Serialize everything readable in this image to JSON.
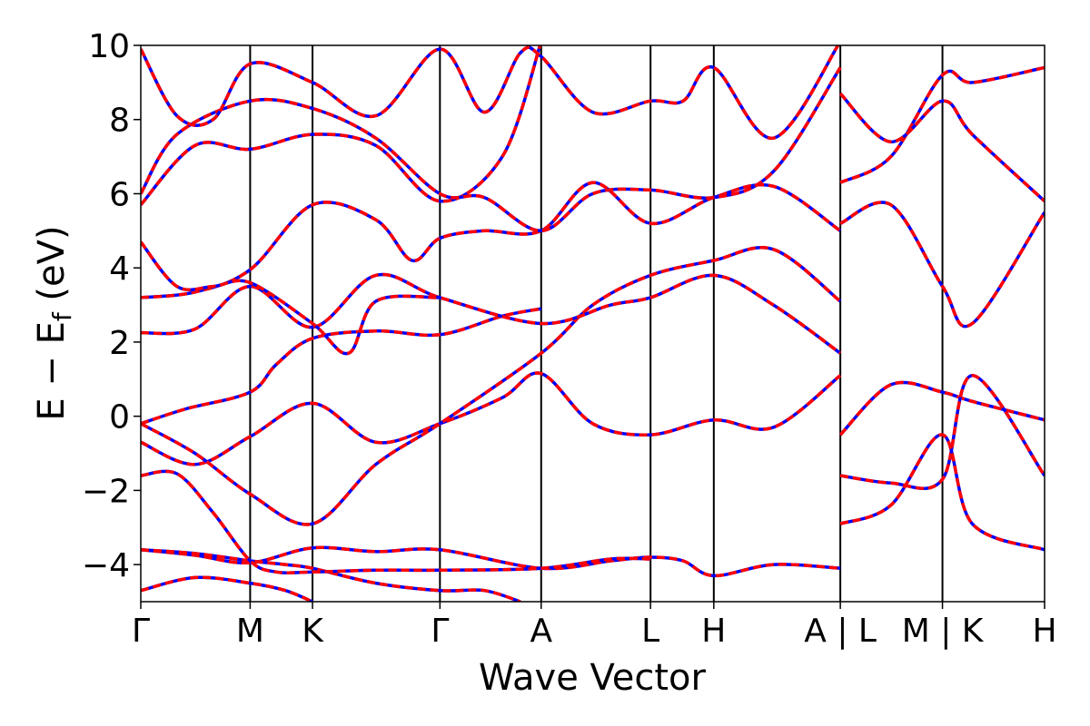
{
  "chart_data": {
    "type": "line",
    "title": "",
    "xlabel": "Wave Vector",
    "ylabel_parts": {
      "main": "E − E",
      "subscript": "f",
      "unit": " (eV)"
    },
    "ylim": [
      -5,
      10
    ],
    "yticks": [
      {
        "value": 10,
        "label": "10"
      },
      {
        "value": 8,
        "label": "8"
      },
      {
        "value": 6,
        "label": "6"
      },
      {
        "value": 4,
        "label": "4"
      },
      {
        "value": 2,
        "label": "2"
      },
      {
        "value": 0,
        "label": "0"
      },
      {
        "value": -2,
        "label": "−2"
      },
      {
        "value": -4,
        "label": "−4"
      }
    ],
    "xlim": [
      0,
      1
    ],
    "high_symmetry_points": [
      {
        "pos": 0.0,
        "label": "Γ"
      },
      {
        "pos": 0.121,
        "label": "M"
      },
      {
        "pos": 0.19,
        "label": "K"
      },
      {
        "pos": 0.331,
        "label": "Γ"
      },
      {
        "pos": 0.443,
        "label": "A"
      },
      {
        "pos": 0.564,
        "label": "L"
      },
      {
        "pos": 0.634,
        "label": "H"
      },
      {
        "pos": 0.774,
        "label": "A | L"
      },
      {
        "pos": 0.887,
        "label": "M | K"
      },
      {
        "pos": 1.0,
        "label": "H"
      }
    ],
    "overlay_colors": {
      "base": "#0000ff",
      "dashed": "#ff0000"
    },
    "bands": [
      [
        [
          0.0,
          -4.7
        ],
        [
          0.06,
          -4.35
        ],
        [
          0.121,
          -4.5
        ],
        [
          0.16,
          -4.7
        ],
        [
          0.19,
          -5.0
        ]
      ],
      [
        [
          0.0,
          -3.6
        ],
        [
          0.06,
          -3.75
        ],
        [
          0.121,
          -3.95
        ],
        [
          0.19,
          -3.55
        ],
        [
          0.26,
          -3.65
        ],
        [
          0.331,
          -3.6
        ],
        [
          0.443,
          -4.1
        ],
        [
          0.52,
          -3.9
        ],
        [
          0.564,
          -3.8
        ],
        [
          0.6,
          -3.9
        ],
        [
          0.634,
          -4.3
        ],
        [
          0.7,
          -4.0
        ],
        [
          0.774,
          -4.1
        ]
      ],
      [
        [
          0.0,
          -3.6
        ],
        [
          0.06,
          -3.7
        ],
        [
          0.121,
          -3.9
        ],
        [
          0.16,
          -4.0
        ],
        [
          0.19,
          -4.1
        ],
        [
          0.26,
          -4.5
        ],
        [
          0.331,
          -4.7
        ],
        [
          0.38,
          -4.7
        ],
        [
          0.42,
          -5.0
        ]
      ],
      [
        [
          0.0,
          -1.6
        ],
        [
          0.04,
          -1.55
        ],
        [
          0.08,
          -2.6
        ],
        [
          0.121,
          -3.9
        ],
        [
          0.15,
          -4.2
        ],
        [
          0.19,
          -4.2
        ],
        [
          0.26,
          -4.15
        ],
        [
          0.331,
          -4.15
        ],
        [
          0.443,
          -4.1
        ],
        [
          0.52,
          -3.85
        ],
        [
          0.564,
          -3.85
        ]
      ],
      [
        [
          0.0,
          -0.7
        ],
        [
          0.06,
          -1.3
        ],
        [
          0.121,
          -0.55
        ],
        [
          0.19,
          0.35
        ],
        [
          0.26,
          -0.7
        ],
        [
          0.331,
          -0.2
        ],
        [
          0.4,
          0.5
        ],
        [
          0.443,
          1.15
        ],
        [
          0.5,
          -0.2
        ],
        [
          0.564,
          -0.5
        ],
        [
          0.634,
          -0.1
        ],
        [
          0.7,
          -0.3
        ],
        [
          0.774,
          1.1
        ]
      ],
      [
        [
          0.0,
          -0.2
        ],
        [
          0.05,
          0.2
        ],
        [
          0.121,
          0.65
        ],
        [
          0.15,
          1.4
        ],
        [
          0.19,
          2.1
        ],
        [
          0.26,
          2.3
        ],
        [
          0.331,
          2.2
        ],
        [
          0.4,
          2.7
        ],
        [
          0.443,
          2.9
        ]
      ],
      [
        [
          0.0,
          -0.2
        ],
        [
          0.06,
          -1.0
        ],
        [
          0.121,
          -2.1
        ],
        [
          0.19,
          -2.9
        ],
        [
          0.26,
          -1.3
        ],
        [
          0.331,
          -0.2
        ],
        [
          0.443,
          1.7
        ],
        [
          0.5,
          3.0
        ],
        [
          0.564,
          3.8
        ],
        [
          0.634,
          4.2
        ],
        [
          0.7,
          4.5
        ],
        [
          0.774,
          3.1
        ]
      ],
      [
        [
          0.0,
          2.25
        ],
        [
          0.06,
          2.35
        ],
        [
          0.121,
          3.5
        ],
        [
          0.19,
          2.4
        ],
        [
          0.26,
          3.8
        ],
        [
          0.331,
          3.2
        ],
        [
          0.443,
          2.5
        ],
        [
          0.52,
          3.0
        ],
        [
          0.564,
          3.2
        ],
        [
          0.634,
          3.8
        ],
        [
          0.7,
          3.0
        ],
        [
          0.774,
          1.7
        ]
      ],
      [
        [
          0.0,
          3.2
        ],
        [
          0.06,
          3.35
        ],
        [
          0.121,
          3.95
        ],
        [
          0.19,
          5.7
        ],
        [
          0.26,
          5.3
        ],
        [
          0.3,
          4.2
        ],
        [
          0.331,
          4.8
        ],
        [
          0.38,
          5.0
        ],
        [
          0.443,
          5.0
        ],
        [
          0.5,
          6.3
        ],
        [
          0.564,
          5.2
        ],
        [
          0.634,
          5.9
        ],
        [
          0.7,
          6.2
        ],
        [
          0.774,
          5.0
        ]
      ],
      [
        [
          0.0,
          4.7
        ],
        [
          0.04,
          3.5
        ],
        [
          0.08,
          3.5
        ],
        [
          0.121,
          3.6
        ],
        [
          0.19,
          2.5
        ],
        [
          0.23,
          1.7
        ],
        [
          0.26,
          3.1
        ],
        [
          0.331,
          3.2
        ]
      ],
      [
        [
          0.0,
          5.7
        ],
        [
          0.06,
          7.3
        ],
        [
          0.121,
          7.2
        ],
        [
          0.19,
          7.6
        ],
        [
          0.26,
          7.3
        ],
        [
          0.331,
          5.8
        ],
        [
          0.4,
          7.0
        ],
        [
          0.443,
          10.1
        ]
      ],
      [
        [
          0.0,
          6.0
        ],
        [
          0.04,
          7.6
        ],
        [
          0.121,
          8.5
        ],
        [
          0.19,
          8.3
        ],
        [
          0.26,
          7.5
        ],
        [
          0.331,
          6.0
        ],
        [
          0.38,
          5.9
        ],
        [
          0.443,
          5.0
        ],
        [
          0.5,
          6.0
        ],
        [
          0.564,
          6.1
        ],
        [
          0.634,
          5.9
        ],
        [
          0.7,
          6.6
        ],
        [
          0.774,
          9.4
        ]
      ],
      [
        [
          0.0,
          9.9
        ],
        [
          0.04,
          8.1
        ],
        [
          0.08,
          8.0
        ],
        [
          0.121,
          9.5
        ],
        [
          0.19,
          9.0
        ],
        [
          0.26,
          8.1
        ],
        [
          0.331,
          9.9
        ],
        [
          0.38,
          8.2
        ],
        [
          0.42,
          9.8
        ],
        [
          0.443,
          9.7
        ],
        [
          0.5,
          8.2
        ],
        [
          0.564,
          8.5
        ],
        [
          0.6,
          8.5
        ],
        [
          0.634,
          9.4
        ],
        [
          0.7,
          7.5
        ],
        [
          0.774,
          10.1
        ]
      ],
      [
        [
          0.774,
          -0.5
        ],
        [
          0.83,
          0.85
        ],
        [
          0.887,
          0.65
        ],
        [
          0.92,
          0.4
        ],
        [
          1.0,
          -0.1
        ]
      ],
      [
        [
          0.774,
          -1.6
        ],
        [
          0.83,
          -1.8
        ],
        [
          0.887,
          -1.7
        ],
        [
          0.92,
          1.1
        ],
        [
          1.0,
          -1.6
        ]
      ],
      [
        [
          0.774,
          -2.9
        ],
        [
          0.83,
          -2.4
        ],
        [
          0.887,
          -0.5
        ],
        [
          0.92,
          -2.9
        ],
        [
          1.0,
          -3.6
        ]
      ],
      [
        [
          0.774,
          5.2
        ],
        [
          0.83,
          5.7
        ],
        [
          0.887,
          3.5
        ],
        [
          0.92,
          2.5
        ],
        [
          1.0,
          5.5
        ]
      ],
      [
        [
          0.774,
          6.3
        ],
        [
          0.83,
          7.0
        ],
        [
          0.887,
          9.2
        ],
        [
          0.92,
          9.0
        ],
        [
          1.0,
          9.4
        ]
      ],
      [
        [
          0.774,
          8.7
        ],
        [
          0.83,
          7.4
        ],
        [
          0.887,
          8.5
        ],
        [
          0.92,
          7.6
        ],
        [
          1.0,
          5.8
        ]
      ]
    ]
  }
}
